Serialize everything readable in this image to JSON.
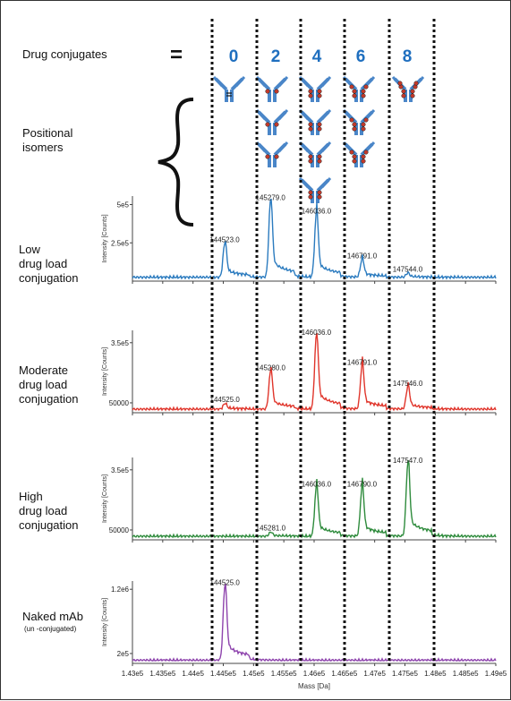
{
  "header": {
    "row_label": "Drug conjugates",
    "equals": "=",
    "dar_values": [
      "0",
      "2",
      "4",
      "6",
      "8"
    ],
    "isomer_label": "Positional\nisomers"
  },
  "colors": {
    "low": "#2b7bbf",
    "moderate": "#e0352b",
    "high": "#2e8b3c",
    "naked": "#8e44ad",
    "dar_text": "#1f6fbf",
    "antibody": "#4a86c8",
    "drug": "#c0392b"
  },
  "panel_labels": {
    "low": "Low\ndrug load\nconjugation",
    "moderate": "Moderate\ndrug load\nconjugation",
    "high": "High\ndrug load\nconjugation",
    "naked": "Naked mAb",
    "naked_sub": "(un -conjugated)"
  },
  "chart_data": [
    {
      "type": "line",
      "name": "low",
      "ylabel": "Intensity [Counts]",
      "yticks": [
        "2.5e5",
        "5e5"
      ],
      "xlim": [
        143000,
        149000
      ],
      "peaks": [
        {
          "mass": 144523.0,
          "height": 0.42,
          "label": "144523.0"
        },
        {
          "mass": 145279.0,
          "height": 0.95,
          "label": "145279.0"
        },
        {
          "mass": 146036.0,
          "height": 0.78,
          "label": "146036.0"
        },
        {
          "mass": 146791.0,
          "height": 0.22,
          "label": "146791.0"
        },
        {
          "mass": 147544.0,
          "height": 0.05,
          "label": "147544.0"
        }
      ]
    },
    {
      "type": "line",
      "name": "moderate",
      "ylabel": "Intensity [Counts]",
      "yticks": [
        "50000",
        "3.5e5"
      ],
      "xlim": [
        143000,
        149000
      ],
      "peaks": [
        {
          "mass": 144525.0,
          "height": 0.07,
          "label": "144525.0"
        },
        {
          "mass": 145280.0,
          "height": 0.48,
          "label": "145280.0"
        },
        {
          "mass": 146036.0,
          "height": 0.94,
          "label": "146036.0"
        },
        {
          "mass": 146791.0,
          "height": 0.55,
          "label": "146791.0"
        },
        {
          "mass": 147546.0,
          "height": 0.28,
          "label": "147546.0"
        }
      ]
    },
    {
      "type": "line",
      "name": "high",
      "ylabel": "Intensity [Counts]",
      "yticks": [
        "50000",
        "3.5e5"
      ],
      "xlim": [
        143000,
        149000
      ],
      "peaks": [
        {
          "mass": 145281.0,
          "height": 0.05,
          "label": "145281.0"
        },
        {
          "mass": 146036.0,
          "height": 0.62,
          "label": "146036.0"
        },
        {
          "mass": 146790.0,
          "height": 0.62,
          "label": "146790.0"
        },
        {
          "mass": 147547.0,
          "height": 0.93,
          "label": "147547.0"
        }
      ]
    },
    {
      "type": "line",
      "name": "naked",
      "ylabel": "Intensity [Counts]",
      "yticks": [
        "2e5",
        "1.2e6"
      ],
      "xlim": [
        143000,
        149000
      ],
      "xlabel": "Mass [Da]",
      "xticks": [
        "1.43e5",
        "1.435e5",
        "1.44e5",
        "1.445e5",
        "1.45e5",
        "1.455e5",
        "1.46e5",
        "1.465e5",
        "1.47e5",
        "1.475e5",
        "1.48e5",
        "1.485e5",
        "1.49e5"
      ],
      "peaks": [
        {
          "mass": 144525.0,
          "height": 0.95,
          "label": "144525.0"
        }
      ]
    }
  ]
}
